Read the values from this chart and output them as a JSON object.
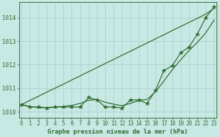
{
  "xlabel": "Graphe pression niveau de la mer (hPa)",
  "hours": [
    0,
    1,
    2,
    3,
    4,
    5,
    6,
    7,
    8,
    9,
    10,
    11,
    12,
    13,
    14,
    15,
    16,
    17,
    18,
    19,
    20,
    21,
    22,
    23
  ],
  "line_straight": [
    1010.3,
    1010.48,
    1010.65,
    1010.83,
    1011.0,
    1011.17,
    1011.35,
    1011.52,
    1011.7,
    1011.87,
    1012.05,
    1012.22,
    1012.4,
    1012.57,
    1012.75,
    1012.92,
    1013.1,
    1013.27,
    1013.45,
    1013.62,
    1013.8,
    1013.97,
    1014.15,
    1014.4
  ],
  "line_smooth": [
    1010.3,
    1010.22,
    1010.17,
    1010.17,
    1010.2,
    1010.22,
    1010.27,
    1010.35,
    1010.48,
    1010.52,
    1010.4,
    1010.32,
    1010.25,
    1010.35,
    1010.48,
    1010.52,
    1010.85,
    1011.3,
    1011.78,
    1012.2,
    1012.6,
    1012.95,
    1013.35,
    1013.9
  ],
  "line_main": [
    1010.3,
    1010.2,
    1010.2,
    1010.15,
    1010.2,
    1010.2,
    1010.2,
    1010.2,
    1010.6,
    1010.5,
    1010.2,
    1010.2,
    1010.15,
    1010.5,
    1010.5,
    1010.35,
    1010.9,
    1011.75,
    1011.95,
    1012.5,
    1012.75,
    1013.3,
    1014.0,
    1014.45
  ],
  "ylim": [
    1009.75,
    1014.65
  ],
  "yticks": [
    1010,
    1011,
    1012,
    1013,
    1014
  ],
  "xlim": [
    -0.3,
    23.3
  ],
  "color": "#2d6a2d",
  "bg_color": "#c8e8e4",
  "grid_color": "#a8ccc8",
  "marker": "*",
  "marker_size": 4.0,
  "linewidth": 0.9,
  "tick_fontsize": 5.5,
  "xlabel_fontsize": 6.5
}
